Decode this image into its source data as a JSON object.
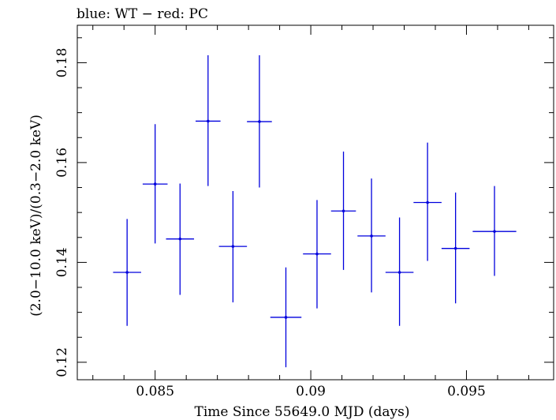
{
  "chart_data": {
    "type": "scatter",
    "title": "blue: WT − red: PC",
    "xlabel": "Time Since 55649.0 MJD (days)",
    "ylabel": "(2.0−10.0 keV)/(0.3−2.0 keV)",
    "xlim": [
      0.0825,
      0.0978
    ],
    "ylim": [
      0.1165,
      0.1875
    ],
    "xticks": [
      {
        "value": 0.085,
        "label": "0.085"
      },
      {
        "value": 0.09,
        "label": "0.09"
      },
      {
        "value": 0.095,
        "label": "0.095"
      }
    ],
    "yticks": [
      {
        "value": 0.12,
        "label": "0.12"
      },
      {
        "value": 0.14,
        "label": "0.14"
      },
      {
        "value": 0.16,
        "label": "0.16"
      },
      {
        "value": 0.18,
        "label": "0.18"
      }
    ],
    "grid": false,
    "series": [
      {
        "color": "#0000dd",
        "points": [
          {
            "x": 0.0841,
            "xerr": 0.00045,
            "y": 0.138,
            "ylo": 0.1273,
            "yhi": 0.1487
          },
          {
            "x": 0.085,
            "xerr": 0.0004,
            "y": 0.1557,
            "ylo": 0.1438,
            "yhi": 0.1677
          },
          {
            "x": 0.0858,
            "xerr": 0.00045,
            "y": 0.1447,
            "ylo": 0.1335,
            "yhi": 0.1558
          },
          {
            "x": 0.0867,
            "xerr": 0.0004,
            "y": 0.1683,
            "ylo": 0.1553,
            "yhi": 0.1815
          },
          {
            "x": 0.0875,
            "xerr": 0.00045,
            "y": 0.1432,
            "ylo": 0.132,
            "yhi": 0.1543
          },
          {
            "x": 0.08835,
            "xerr": 0.0004,
            "y": 0.1682,
            "ylo": 0.155,
            "yhi": 0.1815
          },
          {
            "x": 0.0892,
            "xerr": 0.0005,
            "y": 0.129,
            "ylo": 0.119,
            "yhi": 0.139
          },
          {
            "x": 0.0902,
            "xerr": 0.00045,
            "y": 0.1417,
            "ylo": 0.1308,
            "yhi": 0.1525
          },
          {
            "x": 0.09105,
            "xerr": 0.0004,
            "y": 0.1503,
            "ylo": 0.1385,
            "yhi": 0.1622
          },
          {
            "x": 0.09195,
            "xerr": 0.00045,
            "y": 0.1453,
            "ylo": 0.134,
            "yhi": 0.1568
          },
          {
            "x": 0.09285,
            "xerr": 0.00045,
            "y": 0.138,
            "ylo": 0.1273,
            "yhi": 0.149
          },
          {
            "x": 0.09375,
            "xerr": 0.00045,
            "y": 0.152,
            "ylo": 0.1403,
            "yhi": 0.164
          },
          {
            "x": 0.09465,
            "xerr": 0.00045,
            "y": 0.1428,
            "ylo": 0.1318,
            "yhi": 0.154
          },
          {
            "x": 0.0959,
            "xerr": 0.0007,
            "y": 0.1462,
            "ylo": 0.1373,
            "yhi": 0.1553
          }
        ]
      }
    ]
  }
}
